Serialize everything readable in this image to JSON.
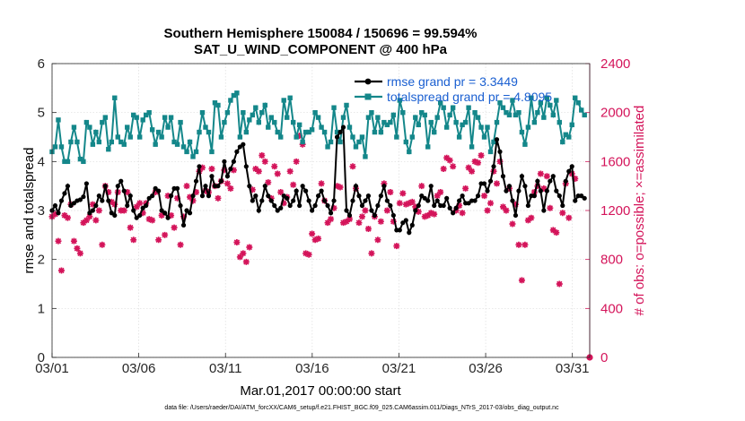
{
  "chart_data": {
    "type": "line",
    "title_line1": "Southern Hemisphere 150084 / 150696 = 99.594%",
    "title_line2": "SAT_U_WIND_COMPONENT @ 400 hPa",
    "xlabel": "Mar.01,2017 00:00:00 start",
    "ylabel": "rmse and totalspread",
    "y2label": "# of obs: o=possible; ×=assimilated",
    "x_tick_labels": [
      "03/01",
      "03/06",
      "03/11",
      "03/16",
      "03/21",
      "03/26",
      "03/31"
    ],
    "x_tick_days": [
      0,
      5,
      10,
      15,
      20,
      25,
      30
    ],
    "xlim": [
      0,
      31
    ],
    "ylim": [
      0,
      6
    ],
    "y_ticks": [
      0,
      1,
      2,
      3,
      4,
      5,
      6
    ],
    "y2lim": [
      0,
      2400
    ],
    "y2_ticks": [
      0,
      400,
      800,
      1200,
      1600,
      2000,
      2400
    ],
    "series": [
      {
        "name": "rmse",
        "legend": "rmse grand pr = 3.3449",
        "color": "#000000",
        "values": [
          3.0,
          3.1,
          2.95,
          3.2,
          3.35,
          3.5,
          3.1,
          3.15,
          3.2,
          3.22,
          3.28,
          3.55,
          2.95,
          3.0,
          3.1,
          3.3,
          3.2,
          3.5,
          3.2,
          2.95,
          2.9,
          3.5,
          3.6,
          3.4,
          3.1,
          3.3,
          3.0,
          2.85,
          2.9,
          3.05,
          3.1,
          3.25,
          3.3,
          3.45,
          3.4,
          3.0,
          2.95,
          2.85,
          3.3,
          3.45,
          3.45,
          3.1,
          2.7,
          3.0,
          2.95,
          3.3,
          3.6,
          3.9,
          3.3,
          3.5,
          3.3,
          3.7,
          3.5,
          3.5,
          3.6,
          4.0,
          3.7,
          3.85,
          4.0,
          4.2,
          4.3,
          4.35,
          3.9,
          3.5,
          3.2,
          3.3,
          3.0,
          3.2,
          3.5,
          3.3,
          3.2,
          3.1,
          3.0,
          3.05,
          3.3,
          3.25,
          3.1,
          3.2,
          3.4,
          3.1,
          3.5,
          3.4,
          3.2,
          3.0,
          3.1,
          3.3,
          3.4,
          3.2,
          3.1,
          2.95,
          3.2,
          4.5,
          4.6,
          4.7,
          3.0,
          2.9,
          3.2,
          3.5,
          3.3,
          3.1,
          3.2,
          3.3,
          3.0,
          2.9,
          3.1,
          3.3,
          3.5,
          3.2,
          3.1,
          2.9,
          2.6,
          2.6,
          2.75,
          2.8,
          2.55,
          2.7,
          3.0,
          3.1,
          3.3,
          3.25,
          3.2,
          3.5,
          3.1,
          3.2,
          3.1,
          3.1,
          3.25,
          3.05,
          2.95,
          3.05,
          3.2,
          3.3,
          3.15,
          3.15,
          3.2,
          3.2,
          3.3,
          3.55,
          3.55,
          3.4,
          3.6,
          3.9,
          4.45,
          4.2,
          3.7,
          3.4,
          3.5,
          3.2,
          2.9,
          3.4,
          3.7,
          3.5,
          3.1,
          3.3,
          3.3,
          3.6,
          3.4,
          3.0,
          3.4,
          3.6,
          3.7,
          3.4,
          3.3,
          3.1,
          3.6,
          3.8,
          3.9,
          3.2,
          3.3,
          3.3,
          3.25
        ]
      },
      {
        "name": "totalspread",
        "legend": "totalspread grand pr = 4.8095",
        "color": "#14878a",
        "values": [
          4.2,
          4.3,
          4.85,
          4.3,
          4.0,
          4.0,
          4.4,
          4.7,
          4.4,
          4.05,
          4.0,
          4.8,
          4.7,
          4.35,
          4.6,
          4.4,
          4.8,
          4.9,
          4.25,
          4.4,
          5.3,
          4.5,
          4.4,
          4.35,
          4.7,
          4.5,
          4.95,
          4.9,
          4.5,
          4.85,
          4.95,
          5.0,
          4.65,
          4.35,
          4.6,
          4.5,
          4.9,
          4.7,
          4.9,
          4.4,
          4.35,
          4.8,
          4.3,
          4.2,
          4.4,
          4.1,
          4.2,
          4.6,
          5.0,
          4.7,
          4.6,
          4.2,
          5.2,
          5.15,
          4.5,
          4.8,
          5.0,
          5.25,
          5.35,
          5.4,
          4.5,
          5.0,
          4.6,
          4.85,
          4.95,
          5.1,
          4.8,
          5.0,
          5.15,
          4.7,
          4.9,
          4.8,
          4.6,
          4.5,
          5.25,
          4.9,
          5.3,
          4.8,
          4.5,
          4.75,
          4.4,
          4.6,
          4.6,
          4.65,
          5.0,
          4.9,
          4.7,
          4.6,
          4.3,
          4.4,
          5.1,
          4.6,
          4.4,
          4.9,
          5.15,
          4.7,
          4.5,
          4.3,
          4.4,
          4.5,
          4.1,
          4.9,
          5.0,
          4.6,
          4.9,
          4.6,
          4.8,
          4.75,
          4.8,
          4.95,
          4.5,
          5.25,
          5.0,
          4.4,
          4.2,
          4.5,
          4.9,
          4.75,
          5.0,
          4.95,
          4.3,
          4.8,
          4.6,
          4.9,
          5.2,
          5.1,
          4.7,
          4.95,
          5.1,
          4.8,
          4.5,
          4.75,
          4.8,
          5.1,
          4.3,
          5.0,
          4.9,
          4.7,
          4.5,
          4.7,
          4.2,
          4.4,
          4.8,
          5.2,
          5.1,
          5.0,
          4.95,
          5.25,
          4.95,
          5.0,
          4.6,
          4.35,
          4.7,
          5.3,
          4.8,
          5.0,
          5.2,
          4.9,
          5.3,
          5.15,
          4.95,
          5.25,
          4.8,
          4.4,
          4.55,
          4.5,
          4.75,
          5.3,
          5.2,
          5.05,
          4.95
        ]
      },
      {
        "name": "obs_assimilated",
        "legend": "",
        "color": "#d4145a",
        "values": [
          1150,
          1170,
          950,
          710,
          1160,
          1140,
          1250,
          950,
          890,
          850,
          1100,
          1120,
          1150,
          1250,
          1120,
          1200,
          920,
          1400,
          1350,
          1270,
          1250,
          1350,
          1200,
          1200,
          1350,
          1060,
          960,
          1230,
          1260,
          1180,
          1260,
          1130,
          1120,
          1350,
          960,
          1160,
          1000,
          1320,
          1160,
          1060,
          1300,
          920,
          1150,
          1400,
          1310,
          1280,
          1350,
          1520,
          1550,
          1360,
          1350,
          1540,
          1400,
          1300,
          1440,
          1530,
          1420,
          1380,
          1530,
          940,
          820,
          850,
          780,
          900,
          1370,
          1540,
          1520,
          1650,
          1600,
          1430,
          1300,
          1560,
          1500,
          1350,
          1260,
          1310,
          1520,
          1410,
          1600,
          1810,
          1740,
          850,
          840,
          1010,
          960,
          970,
          1420,
          1280,
          1100,
          1130,
          1220,
          1400,
          1390,
          1100,
          1110,
          1130,
          1560,
          1380,
          1100,
          1150,
          1200,
          1050,
          850,
          1150,
          960,
          1110,
          1420,
          1200,
          1350,
          1110,
          910,
          1260,
          1340,
          1250,
          1260,
          1270,
          1230,
          1190,
          1400,
          1150,
          1160,
          1180,
          1170,
          1320,
          1350,
          1540,
          1630,
          1610,
          1560,
          1200,
          1240,
          1180,
          1380,
          1550,
          1520,
          1600,
          1590,
          1650,
          1320,
          1200,
          1260,
          1520,
          1420,
          1600,
          1230,
          1200,
          1380,
          1090,
          1250,
          920,
          630,
          920,
          1120,
          1140,
          1350,
          1400,
          1500,
          1380,
          1480,
          1220,
          1040,
          1020,
          600,
          1180,
          1420,
          1140,
          1500,
          1460
        ]
      }
    ]
  },
  "footer": {
    "data_file": "data file: /Users/raeder/DAI/ATM_forcXX/CAM6_setup/f.e21.FHIST_BGC.f09_025.CAM6assim.011/Diags_NTrS_2017-03/obs_diag_output.nc"
  }
}
